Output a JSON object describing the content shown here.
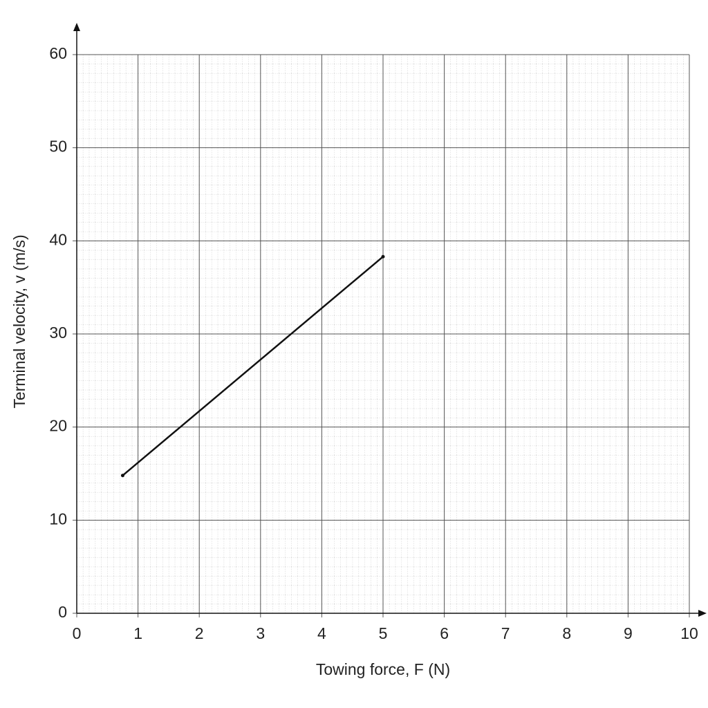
{
  "chart_data": {
    "type": "line",
    "x_label": "Towing force, F (N)",
    "y_label": "Terminal velocity, v (m/s)",
    "x": [
      0.75,
      5
    ],
    "series": [
      {
        "color": "#111111",
        "values": [
          14.8,
          38.3
        ]
      }
    ],
    "xlim": [
      0,
      10
    ],
    "xticks": [
      0,
      1,
      2,
      3,
      4,
      5,
      6,
      7,
      8,
      9,
      10
    ],
    "ylim": [
      0,
      60
    ],
    "yticks": [
      0,
      10,
      20,
      30,
      40,
      50,
      60
    ],
    "grid": true
  }
}
